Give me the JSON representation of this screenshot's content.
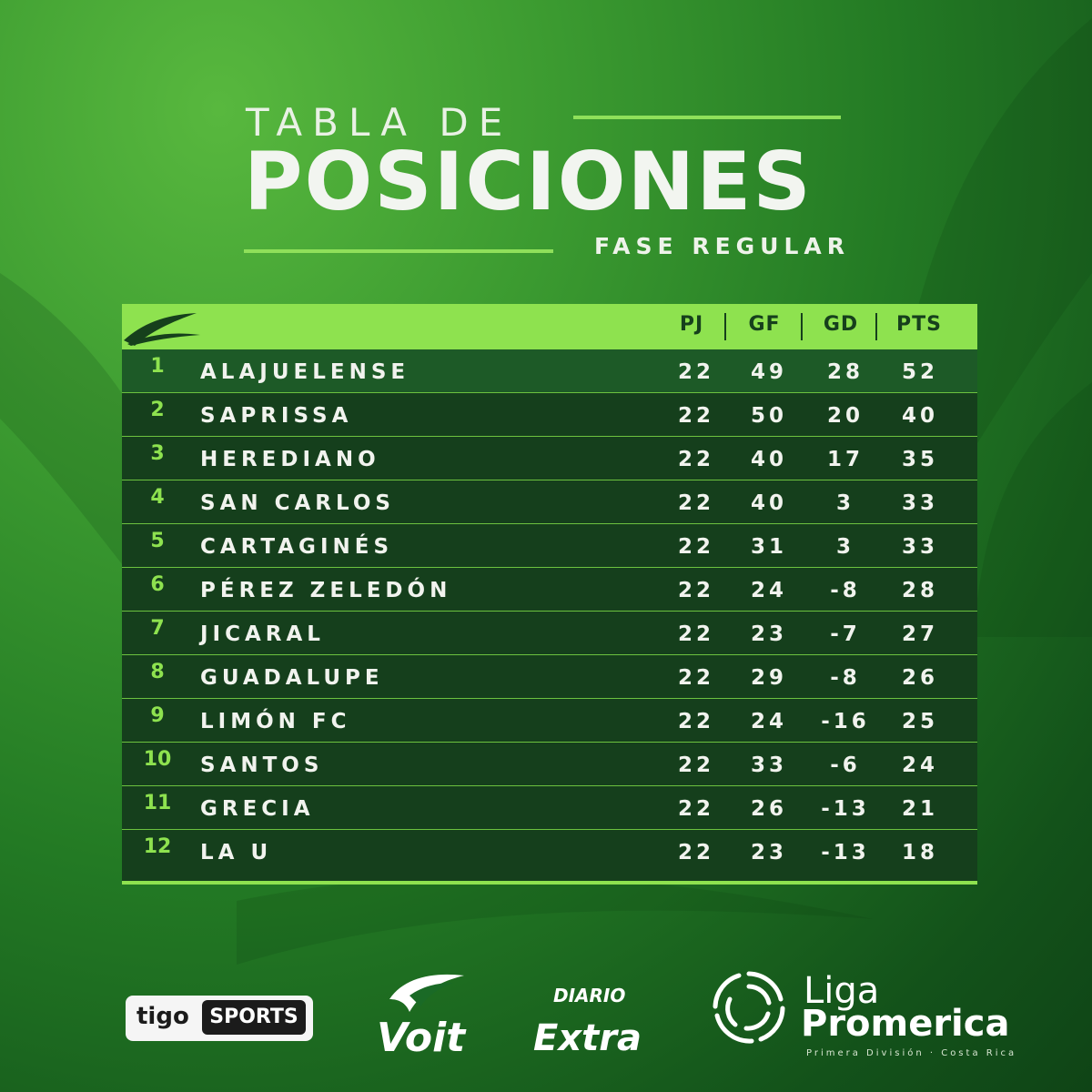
{
  "title": {
    "line1": "TABLA DE",
    "line2": "POSICIONES",
    "subtitle": "FASE REGULAR"
  },
  "colors": {
    "accent": "#8ee24f",
    "table_bg": "#153f1c",
    "background": "#2a8a2a"
  },
  "columns": [
    "PJ",
    "GF",
    "GD",
    "PTS"
  ],
  "rows": [
    {
      "pos": "1",
      "team": "ALAJUELENSE",
      "pj": "22",
      "gf": "49",
      "gd": "28",
      "pts": "52"
    },
    {
      "pos": "2",
      "team": "SAPRISSA",
      "pj": "22",
      "gf": "50",
      "gd": "20",
      "pts": "40"
    },
    {
      "pos": "3",
      "team": "HEREDIANO",
      "pj": "22",
      "gf": "40",
      "gd": "17",
      "pts": "35"
    },
    {
      "pos": "4",
      "team": "SAN CARLOS",
      "pj": "22",
      "gf": "40",
      "gd": "3",
      "pts": "33"
    },
    {
      "pos": "5",
      "team": "CARTAGINÉS",
      "pj": "22",
      "gf": "31",
      "gd": "3",
      "pts": "33"
    },
    {
      "pos": "6",
      "team": "PÉREZ ZELEDÓN",
      "pj": "22",
      "gf": "24",
      "gd": "-8",
      "pts": "28"
    },
    {
      "pos": "7",
      "team": "JICARAL",
      "pj": "22",
      "gf": "23",
      "gd": "-7",
      "pts": "27"
    },
    {
      "pos": "8",
      "team": "GUADALUPE",
      "pj": "22",
      "gf": "29",
      "gd": "-8",
      "pts": "26"
    },
    {
      "pos": "9",
      "team": "LIMÓN FC",
      "pj": "22",
      "gf": "24",
      "gd": "-16",
      "pts": "25"
    },
    {
      "pos": "10",
      "team": "SANTOS",
      "pj": "22",
      "gf": "33",
      "gd": "-6",
      "pts": "24"
    },
    {
      "pos": "11",
      "team": "GRECIA",
      "pj": "22",
      "gf": "26",
      "gd": "-13",
      "pts": "21"
    },
    {
      "pos": "12",
      "team": "LA U",
      "pj": "22",
      "gf": "23",
      "gd": "-13",
      "pts": "18"
    }
  ],
  "sponsors": {
    "tigo": {
      "word": "tigo",
      "label": "SPORTS",
      "icon": "tigo-sports-logo"
    },
    "voit": {
      "word": "Voit",
      "icon": "voit-logo"
    },
    "diario": {
      "top": "DIARIO",
      "bottom": "Extra",
      "icon": "diario-extra-logo"
    },
    "liga": {
      "line1": "Liga",
      "line2": "Promerica",
      "tagline": "Primera División · Costa Rica",
      "icon": "liga-promerica-logo"
    }
  }
}
